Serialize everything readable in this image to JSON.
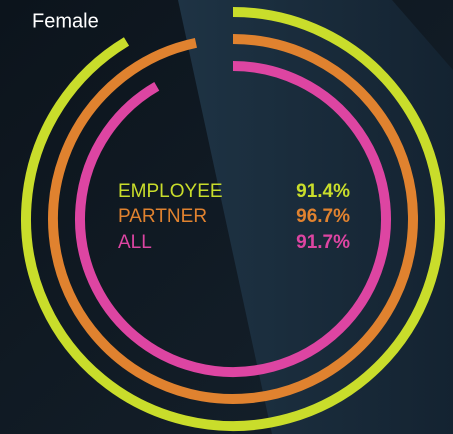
{
  "chart_data": {
    "type": "radial_bar",
    "title": "Female",
    "categories": [
      "EMPLOYEE",
      "PARTNER",
      "ALL"
    ],
    "values": [
      91.4,
      96.7,
      91.7
    ],
    "value_labels": [
      "91.4%",
      "96.7%",
      "91.7%"
    ],
    "colors": [
      "#c9dd2b",
      "#e0822f",
      "#dd45a2"
    ],
    "ylim": [
      0,
      100
    ]
  }
}
